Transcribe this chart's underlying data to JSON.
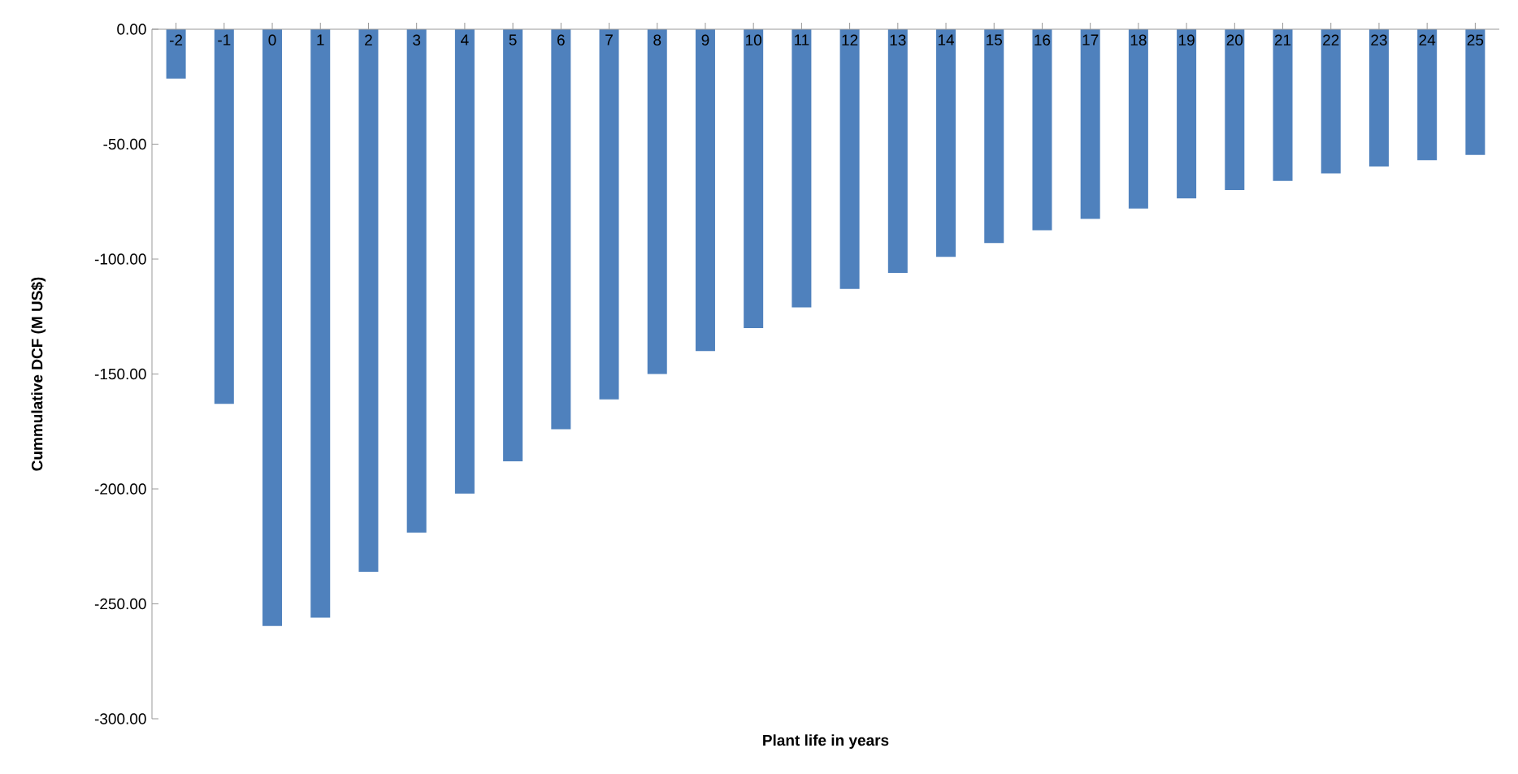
{
  "chart_data": {
    "type": "bar",
    "xlabel": "Plant life in years",
    "ylabel": "Cummulative DCF (M US$)",
    "categories": [
      "-2",
      "-1",
      "0",
      "1",
      "2",
      "3",
      "4",
      "5",
      "6",
      "7",
      "8",
      "9",
      "10",
      "11",
      "12",
      "13",
      "14",
      "15",
      "16",
      "17",
      "18",
      "19",
      "20",
      "21",
      "22",
      "23",
      "24",
      "25"
    ],
    "values": [
      -21.5,
      -163,
      -259.6,
      -256,
      -236,
      -219,
      -202,
      -188,
      -174,
      -161,
      -150,
      -140,
      -130,
      -121,
      -113,
      -106,
      -99,
      -93,
      -87.5,
      -82.5,
      -78,
      -73.6,
      -70,
      -66,
      -62.7,
      -59.7,
      -57,
      -54.7
    ],
    "color": "#4f81bd",
    "ylim": [
      -300,
      0
    ],
    "yticks": [
      {
        "value": -300,
        "label": "-300.00"
      },
      {
        "value": -250,
        "label": "-250.00"
      },
      {
        "value": -200,
        "label": "-200.00"
      },
      {
        "value": -150,
        "label": "-150.00"
      },
      {
        "value": -100,
        "label": "-100.00"
      },
      {
        "value": -50,
        "label": "-50.00"
      },
      {
        "value": 0,
        "label": "0.00"
      }
    ],
    "grid": false
  }
}
